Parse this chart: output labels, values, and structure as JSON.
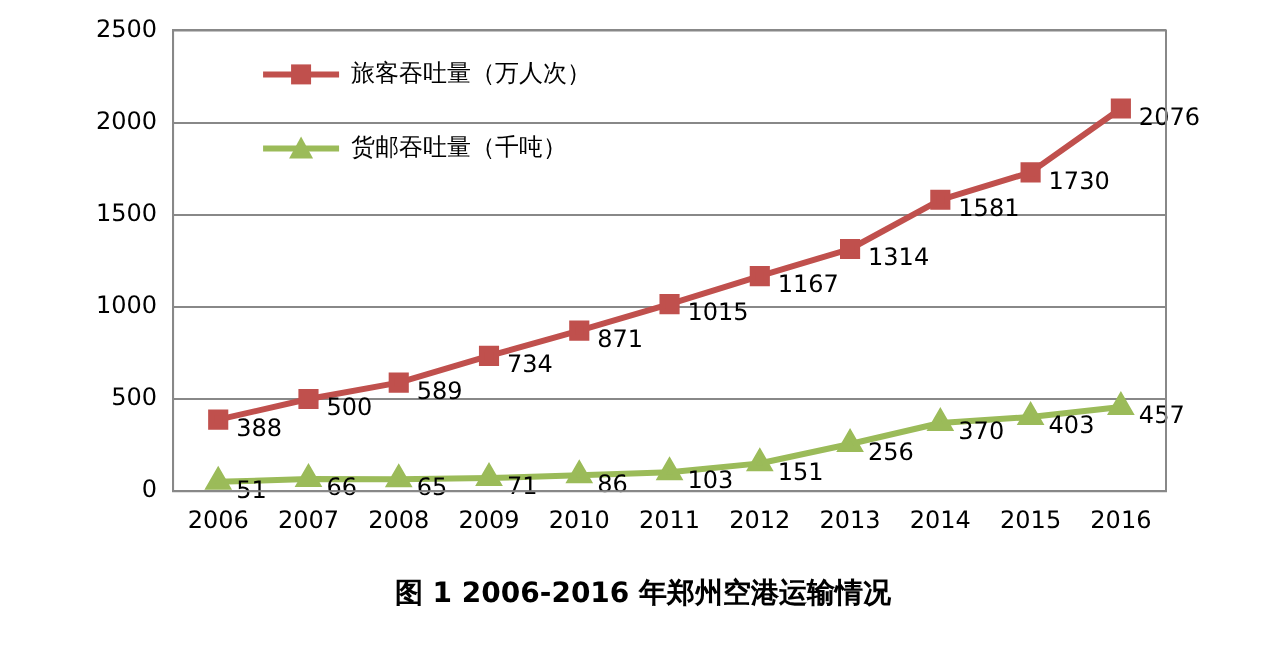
{
  "chart_data": {
    "type": "line",
    "title": "图 1 2006-2016 年郑州空港运输情况",
    "categories": [
      "2006",
      "2007",
      "2008",
      "2009",
      "2010",
      "2011",
      "2012",
      "2013",
      "2014",
      "2015",
      "2016"
    ],
    "series": [
      {
        "name": "旅客吞吐量（万人次）",
        "color": "#c0504d",
        "marker": "square",
        "values": [
          388,
          500,
          589,
          734,
          871,
          1015,
          1167,
          1314,
          1581,
          1730,
          2076
        ]
      },
      {
        "name": "货邮吞吐量（千吨）",
        "color": "#9bbb59",
        "marker": "triangle",
        "values": [
          51,
          66,
          65,
          71,
          86,
          103,
          151,
          256,
          370,
          403,
          457
        ]
      }
    ],
    "ylim": [
      0,
      2500
    ],
    "yticks": [
      0,
      500,
      1000,
      1500,
      2000,
      2500
    ],
    "grid": "y",
    "legend": "top left",
    "data_labels": true,
    "line_style": "solid"
  }
}
